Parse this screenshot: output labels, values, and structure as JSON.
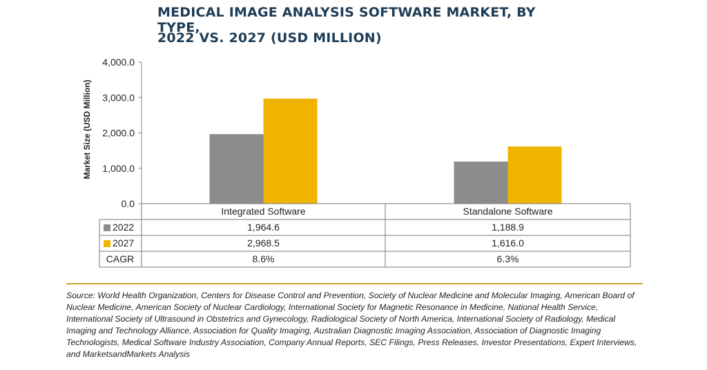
{
  "chart_data": {
    "type": "bar",
    "title_lines": [
      "MEDICAL IMAGE ANALYSIS SOFTWARE MARKET, BY TYPE,",
      "2022 VS. 2027 (USD MILLION)"
    ],
    "ylabel": "Market Size (USD Million)",
    "ylim": [
      0,
      4000
    ],
    "yticks": [
      0,
      1000,
      2000,
      3000,
      4000
    ],
    "ytick_labels": [
      "0.0",
      "1,000.0",
      "2,000.0",
      "3,000.0",
      "4,000.0"
    ],
    "categories": [
      "Integrated Software",
      "Standalone Software"
    ],
    "series": [
      {
        "name": "2022",
        "color": "#8c8c8a",
        "values": [
          1964.6,
          1188.9
        ],
        "labels": [
          "1,964.6",
          "1,188.9"
        ]
      },
      {
        "name": "2027",
        "color": "#f0b400",
        "values": [
          2968.5,
          1616.0
        ],
        "labels": [
          "2,968.5",
          "1,616.0"
        ]
      }
    ],
    "table_rows": [
      {
        "label": "CAGR",
        "values": [
          "8.6%",
          "6.3%"
        ]
      }
    ],
    "grid": false,
    "legend_placement": "data-table"
  },
  "source_text": "Source: World Health Organization, Centers for Disease Control and Prevention, Society of Nuclear Medicine and Molecular Imaging, American Board of Nuclear Medicine, American Society of Nuclear Cardiology, International Society for Magnetic Resonance in Medicine, National Health Service, International Society of Ultrasound in Obstetrics and Gynecology, Radiological Society of North America, International Society of Radiology, Medical Imaging and Technology Alliance, Association for Quality Imaging, Australian Diagnostic Imaging Association, Association of Diagnostic Imaging Technologists, Medical Software Industry Association, Company Annual Reports, SEC Filings, Press Releases, Investor Presentations, Expert Interviews, and MarketsandMarkets Analysis"
}
